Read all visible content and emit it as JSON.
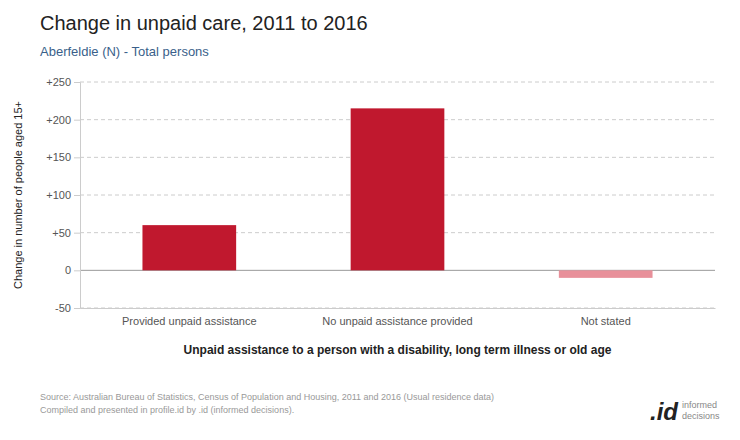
{
  "chart_data": {
    "type": "bar",
    "title": "Change in unpaid care, 2011 to 2016",
    "subtitle": "Aberfeldie (N) - Total persons",
    "categories": [
      "Provided unpaid assistance",
      "No unpaid assistance provided",
      "Not stated"
    ],
    "values": [
      60,
      215,
      -10
    ],
    "colors": [
      "#C0182E",
      "#C0182E",
      "#E8909A"
    ],
    "ylabel": "Change in number of people aged 15+",
    "xlabel": "Unpaid assistance to a person with a disability, long term illness or old age",
    "ylim": [
      -50,
      250
    ],
    "yticks": [
      -50,
      0,
      {
        "value": 50,
        "label": "+50"
      },
      {
        "value": 100,
        "label": "+100"
      },
      {
        "value": 150,
        "label": "+150"
      },
      {
        "value": 200,
        "label": "+200"
      },
      {
        "value": 250,
        "label": "+250"
      }
    ],
    "grid": true,
    "annotations": [
      "Source: Australian Bureau of Statistics, Census of Population and Housing, 2011 and 2016 (Usual residence data)",
      "Compiled and presented in profile.id by .id (informed decisions).",
      ".id",
      "informed\ndecisions"
    ]
  }
}
